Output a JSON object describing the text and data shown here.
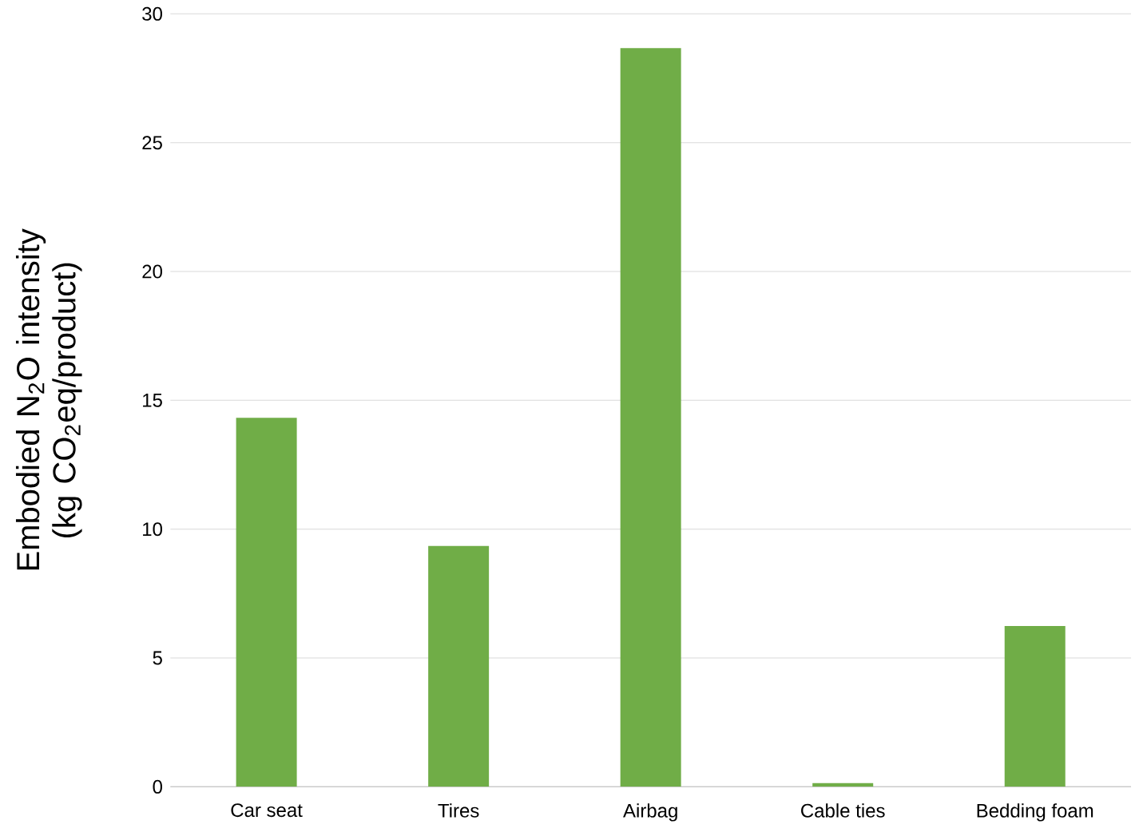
{
  "chart_data": {
    "type": "bar",
    "ylabel": "Embodied N$_{2}$O intensity (kg CO$_{2}$eq/product)",
    "categories": [
      "Car seat",
      "Tires",
      "Airbag",
      "Cable ties",
      "Bedding foam"
    ],
    "values": [
      14.32,
      9.35,
      28.67,
      0.14,
      6.24
    ],
    "color": "#70ad47",
    "ylim": [
      0,
      30
    ],
    "yticks": [
      0,
      5,
      10,
      15,
      20,
      25,
      30
    ],
    "grid": "y"
  }
}
